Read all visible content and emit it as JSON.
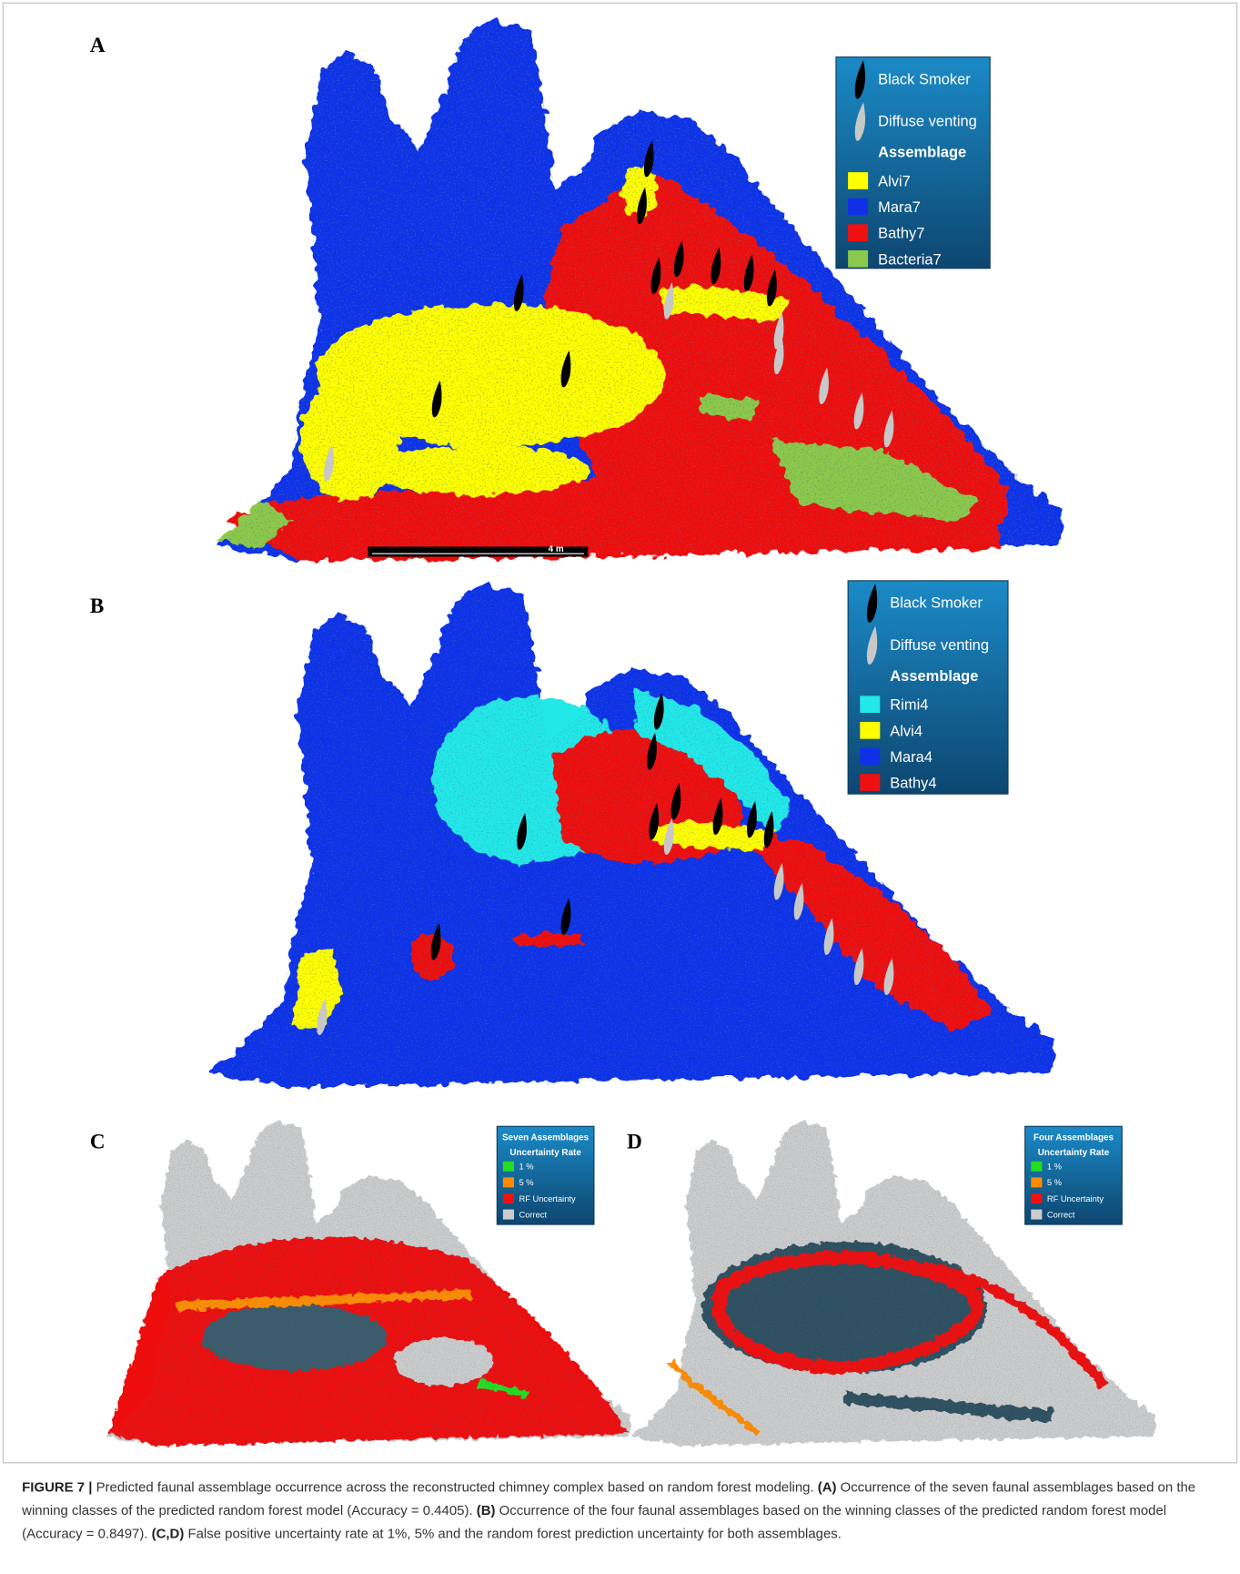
{
  "panels": [
    {
      "label": "A",
      "legend": {
        "markers": [
          {
            "label": "Black Smoker",
            "color": "#000000"
          },
          {
            "label": "Diffuse venting",
            "color": "#c8c8c8"
          }
        ],
        "heading": "Assemblage",
        "items": [
          {
            "label": "Alvi7",
            "color": "#ffff00"
          },
          {
            "label": "Mara7",
            "color": "#1030e8"
          },
          {
            "label": "Bathy7",
            "color": "#ee1111"
          },
          {
            "label": "Bacteria7",
            "color": "#8cc84b"
          }
        ]
      },
      "scale_bar": "4 m"
    },
    {
      "label": "B",
      "legend": {
        "markers": [
          {
            "label": "Black Smoker",
            "color": "#000000"
          },
          {
            "label": "Diffuse venting",
            "color": "#c8c8c8"
          }
        ],
        "heading": "Assemblage",
        "items": [
          {
            "label": "Rimi4",
            "color": "#22e8e8"
          },
          {
            "label": "Alvi4",
            "color": "#ffff00"
          },
          {
            "label": "Mara4",
            "color": "#1030e8"
          },
          {
            "label": "Bathy4",
            "color": "#ee1111"
          }
        ]
      }
    },
    {
      "label": "C",
      "legend": {
        "heading": [
          "Seven Assemblages",
          "Uncertainty Rate"
        ],
        "items": [
          {
            "label": "1 %",
            "color": "#22dd22"
          },
          {
            "label": "5 %",
            "color": "#ff8c00"
          },
          {
            "label": "RF Uncertainty",
            "color": "#ee1111"
          },
          {
            "label": "Correct",
            "color": "#cccccc"
          }
        ]
      }
    },
    {
      "label": "D",
      "legend": {
        "heading": [
          "Four Assemblages",
          "Uncertainty Rate"
        ],
        "items": [
          {
            "label": "1 %",
            "color": "#22dd22"
          },
          {
            "label": "5 %",
            "color": "#ff8c00"
          },
          {
            "label": "RF Uncertainty",
            "color": "#ee1111"
          },
          {
            "label": "Correct",
            "color": "#cccccc"
          }
        ]
      }
    }
  ],
  "caption": [
    {
      "text": "FIGURE 7 |",
      "bold": true
    },
    {
      "text": " Predicted faunal assemblage occurrence across the reconstructed chimney complex based on random forest modeling. ",
      "bold": false
    },
    {
      "text": "(A)",
      "bold": true
    },
    {
      "text": " Occurrence of the seven faunal assemblages based on the winning classes of the predicted random forest model (Accuracy = 0.4405). ",
      "bold": false
    },
    {
      "text": "(B)",
      "bold": true
    },
    {
      "text": " Occurrence of the four faunal assemblages based on the winning classes of the predicted random forest model (Accuracy = 0.8497). ",
      "bold": false
    },
    {
      "text": "(C,D)",
      "bold": true
    },
    {
      "text": " False positive uncertainty rate at 1%, 5% and the random forest prediction uncertainty for both assemblages.",
      "bold": false
    }
  ]
}
